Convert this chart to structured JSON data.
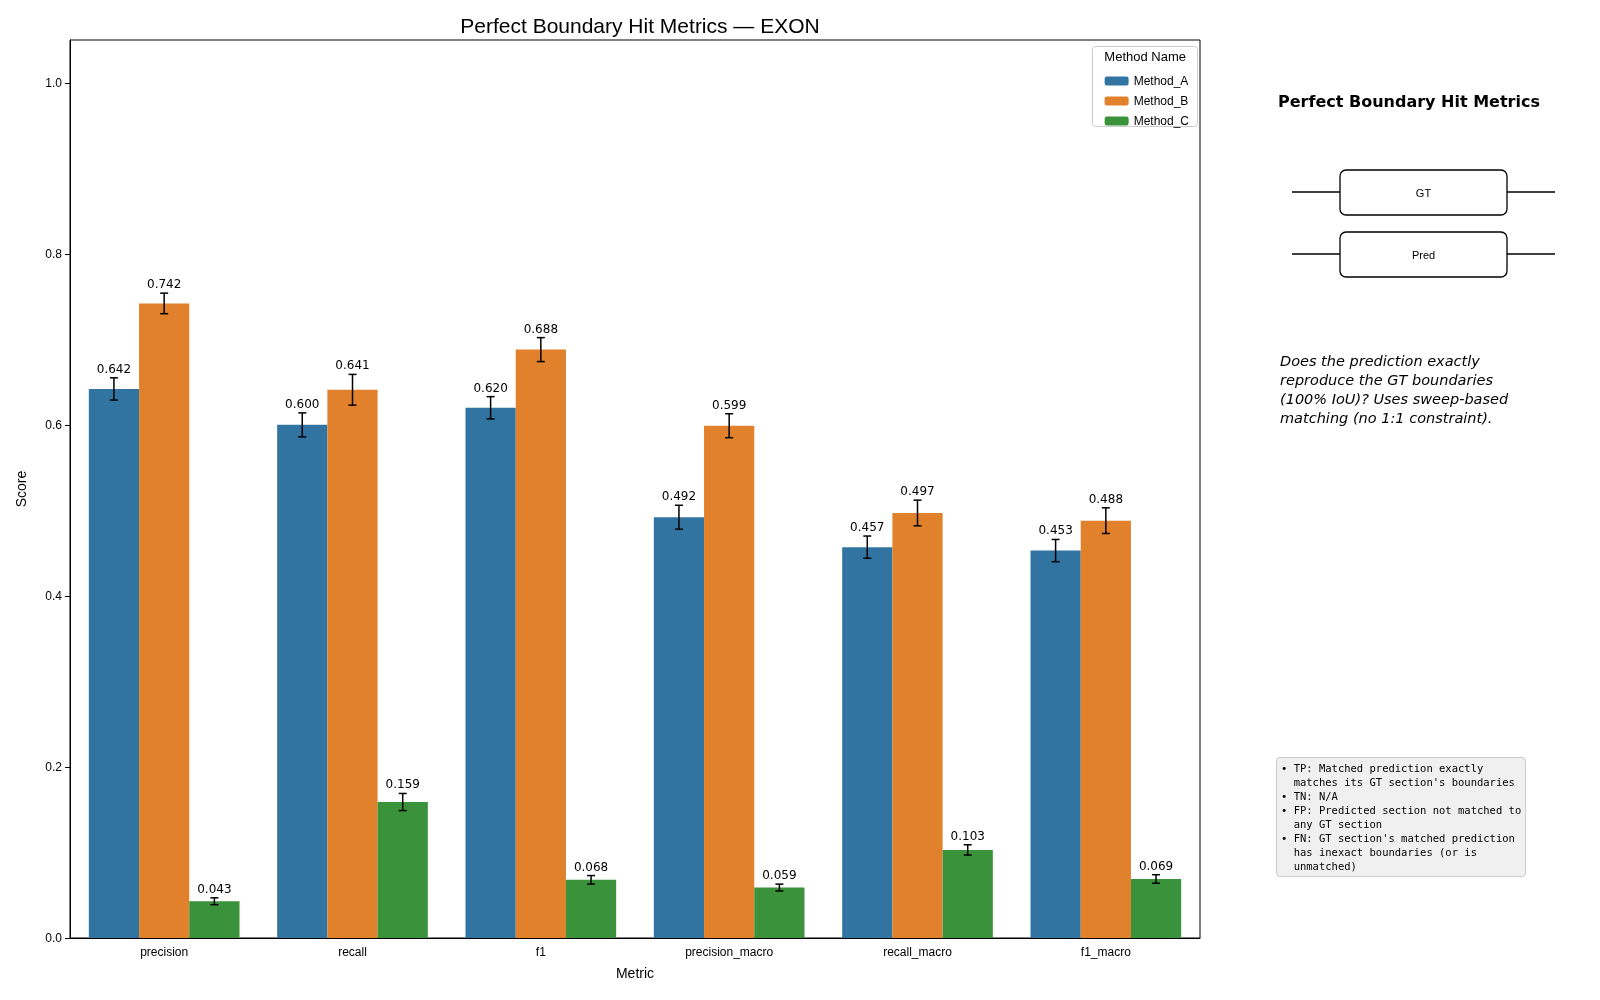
{
  "chart_data": {
    "type": "bar",
    "title": "Perfect Boundary Hit Metrics — EXON",
    "xlabel": "Metric",
    "ylabel": "Score",
    "legend_title": "Method Name",
    "categories": [
      "precision",
      "recall",
      "f1",
      "precision_macro",
      "recall_macro",
      "f1_macro"
    ],
    "series": [
      {
        "name": "Method_A",
        "color": "#3274a1",
        "values": [
          0.642,
          0.6,
          0.62,
          0.492,
          0.457,
          0.453
        ],
        "errors": [
          0.013,
          0.014,
          0.013,
          0.014,
          0.013,
          0.013
        ],
        "value_labels": [
          "0.642",
          "0.600",
          "0.620",
          "0.492",
          "0.457",
          "0.453"
        ]
      },
      {
        "name": "Method_B",
        "color": "#e1812c",
        "values": [
          0.742,
          0.641,
          0.688,
          0.599,
          0.497,
          0.488
        ],
        "errors": [
          0.012,
          0.018,
          0.014,
          0.014,
          0.015,
          0.015
        ],
        "value_labels": [
          "0.742",
          "0.641",
          "0.688",
          "0.599",
          "0.497",
          "0.488"
        ]
      },
      {
        "name": "Method_C",
        "color": "#3a923a",
        "values": [
          0.043,
          0.159,
          0.068,
          0.059,
          0.103,
          0.069
        ],
        "errors": [
          0.004,
          0.01,
          0.005,
          0.004,
          0.006,
          0.005
        ],
        "value_labels": [
          "0.043",
          "0.159",
          "0.068",
          "0.059",
          "0.103",
          "0.069"
        ]
      }
    ],
    "ylim": [
      0,
      1.05
    ],
    "yticks": [
      {
        "value": 0,
        "label": "0.0"
      },
      0.2,
      0.4,
      0.6,
      0.8,
      {
        "value": 1,
        "label": "1.0"
      }
    ],
    "grid": false,
    "legend": "top right",
    "annotations": [
      "Perfect Boundary Hit Metrics",
      "GT",
      "Pred",
      "Does the prediction exactly\nreproduce the GT boundaries\n(100% IoU)? Uses sweep-based\nmatching (no 1:1 constraint).",
      "• TP: Matched prediction exactly\n  matches its GT section's boundaries\n• TN: N/A\n• FP: Predicted section not matched to\n  any GT section\n• FN: GT section's matched prediction\n  has inexact boundaries (or is\n  unmatched)"
    ]
  }
}
